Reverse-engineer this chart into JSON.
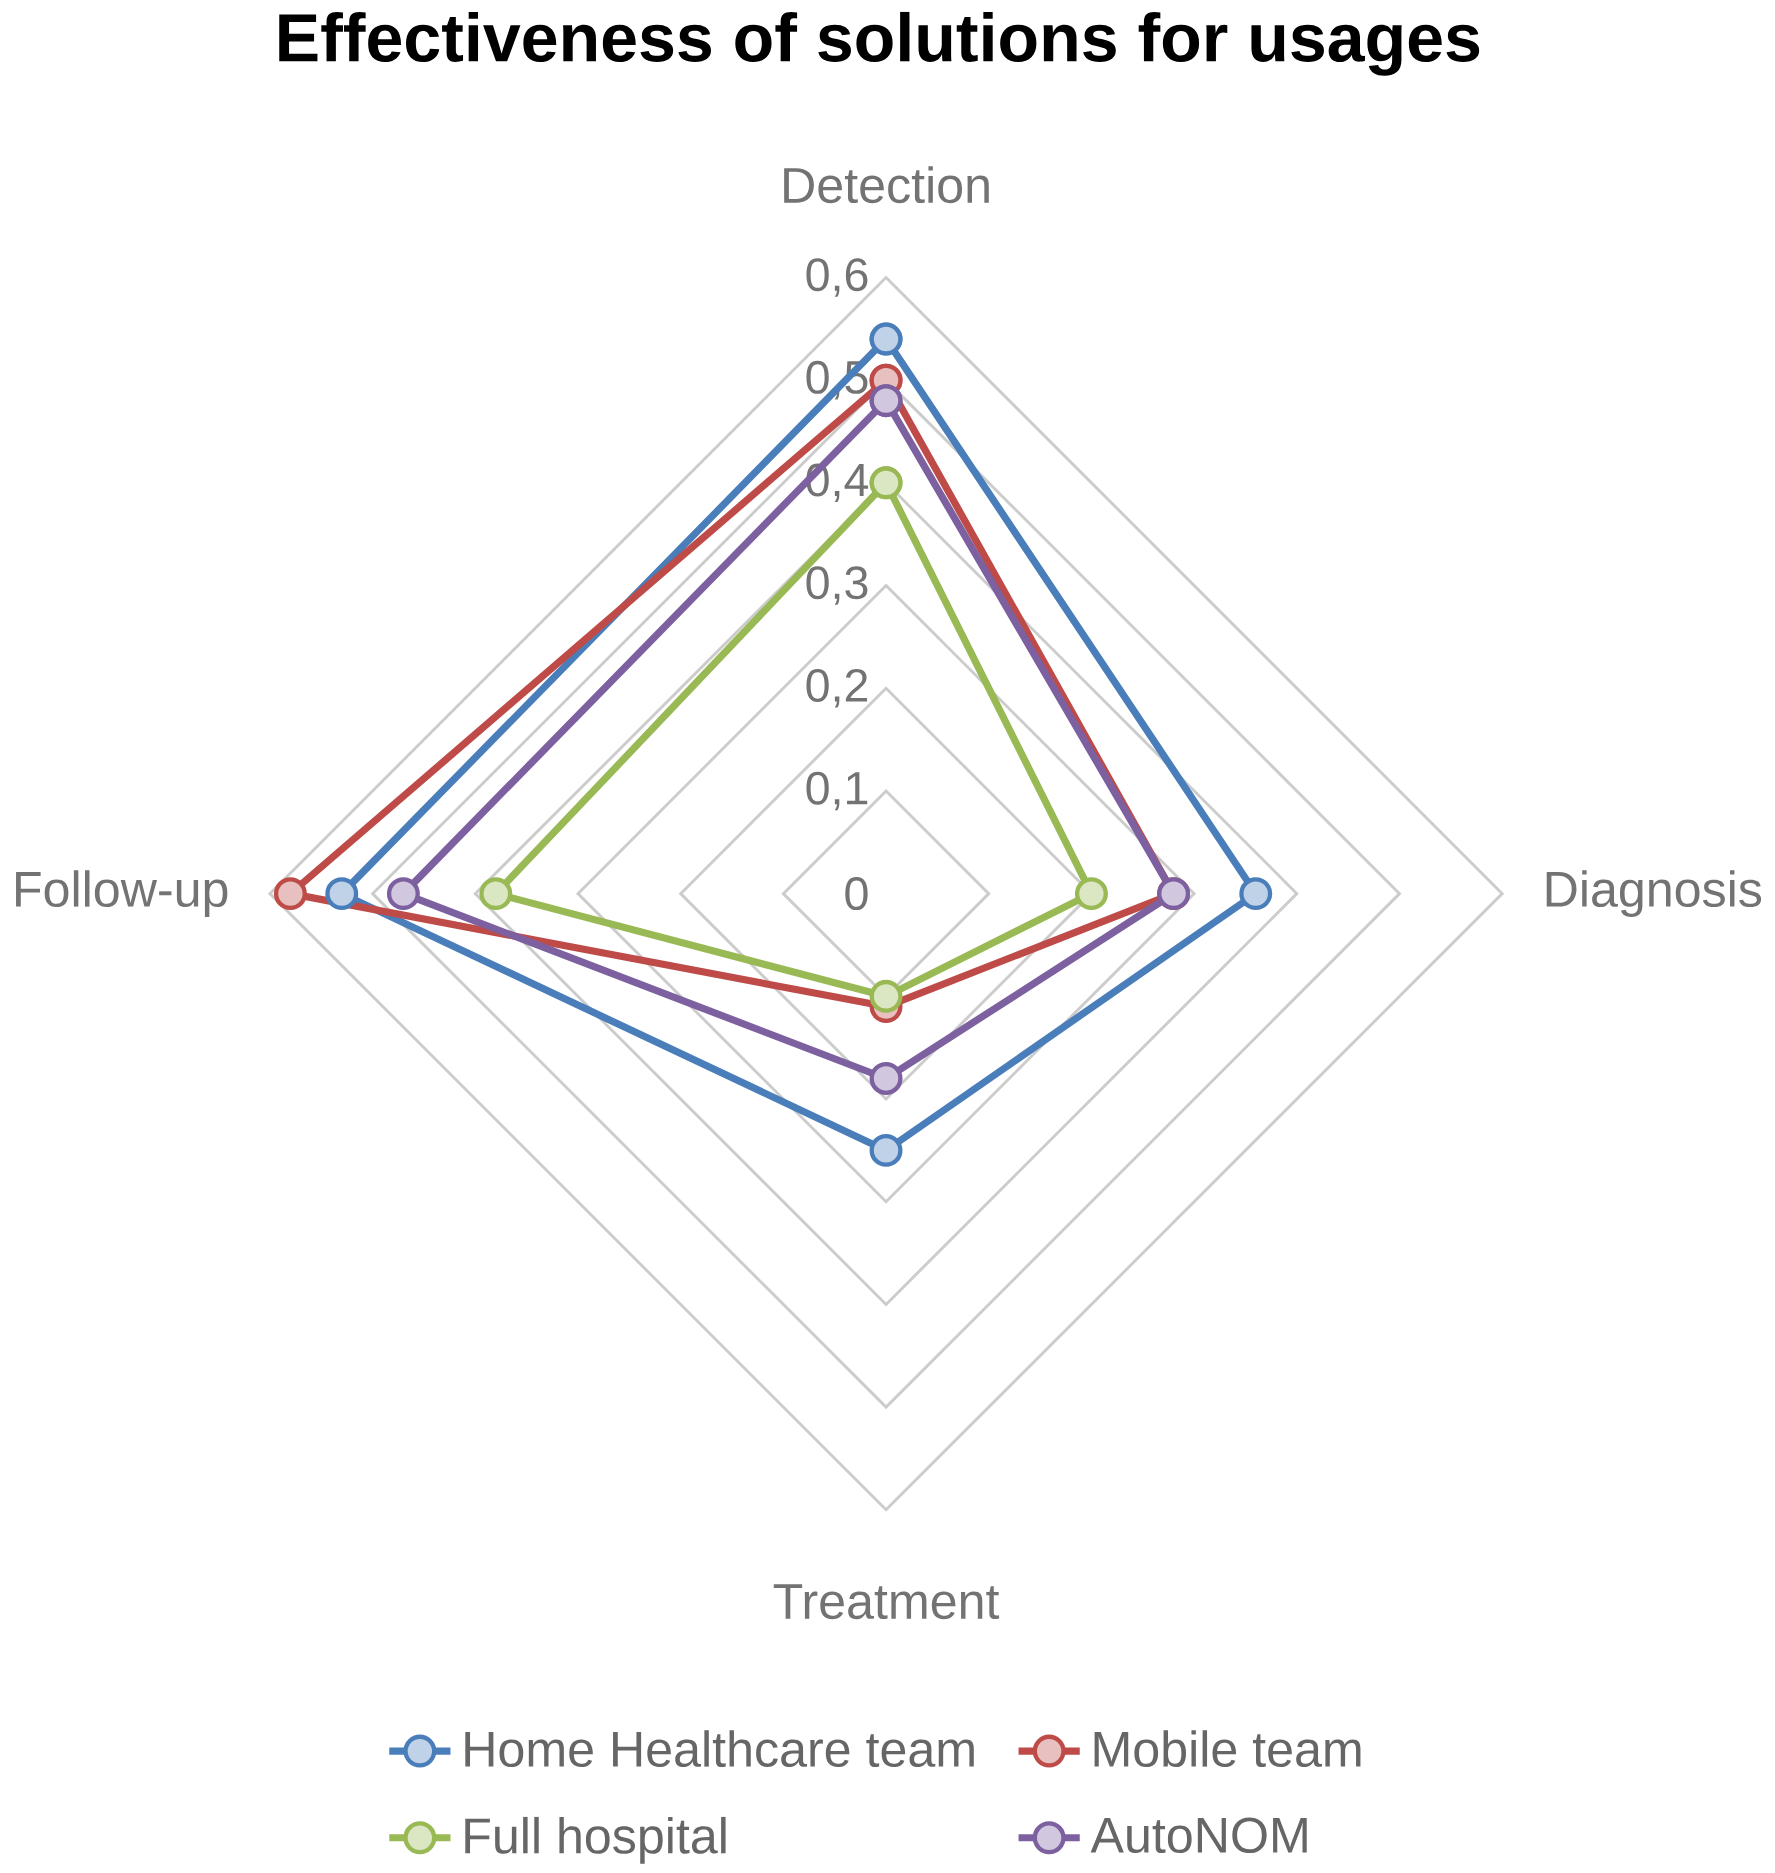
{
  "chart_data": {
    "type": "radar",
    "title": "Effectiveness of solutions for usages",
    "categories": [
      "Detection",
      "Diagnosis",
      "Treatment",
      "Follow-up"
    ],
    "ylim": [
      0,
      0.6
    ],
    "yticks": [
      {
        "value": 0,
        "label": "0"
      },
      {
        "value": 0.1,
        "label": "0,1"
      },
      {
        "value": 0.2,
        "label": "0,2"
      },
      {
        "value": 0.3,
        "label": "0,3"
      },
      {
        "value": 0.4,
        "label": "0,4"
      },
      {
        "value": 0.5,
        "label": "0,5"
      },
      {
        "value": 0.6,
        "label": "0,6"
      }
    ],
    "grid": true,
    "legend": "bottom",
    "marker": "circle",
    "line_style": "solid",
    "series": [
      {
        "name": "Home Healthcare team",
        "color": "#4a7ebb",
        "values": [
          0.54,
          0.36,
          0.25,
          0.53
        ]
      },
      {
        "name": "Mobile team",
        "color": "#be4b48",
        "values": [
          0.5,
          0.28,
          0.11,
          0.58
        ]
      },
      {
        "name": "Full hospital",
        "color": "#98b954",
        "values": [
          0.4,
          0.2,
          0.1,
          0.38
        ]
      },
      {
        "name": "AutoNOM",
        "color": "#7d60a0",
        "values": [
          0.48,
          0.28,
          0.18,
          0.47
        ]
      }
    ]
  }
}
